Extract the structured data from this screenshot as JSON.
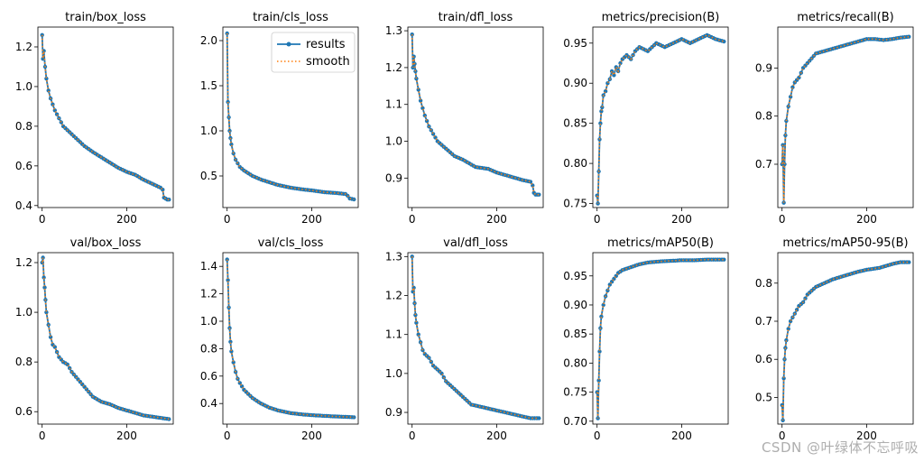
{
  "watermark": "CSDN @叶绿体不忘呼吸",
  "colors": {
    "results": "#1f77b4",
    "smooth": "#ff7f0e",
    "axes": "#000000"
  },
  "legend": {
    "results": "results",
    "smooth": "smooth",
    "placement": "upper-right of train/cls_loss"
  },
  "chart_data": [
    {
      "type": "line",
      "title": "train/box_loss",
      "xlim": [
        -10,
        310
      ],
      "ylim": [
        0.39,
        1.3
      ],
      "xticks": [
        0,
        200
      ],
      "xtick_labels": [
        "0",
        "200"
      ],
      "yticks": [
        0.4,
        0.6,
        0.8,
        1.0,
        1.2
      ],
      "ytick_labels": [
        "0.4",
        "0.6",
        "0.8",
        "1.0",
        "1.2"
      ],
      "x": [
        0,
        2,
        4,
        7,
        10,
        15,
        20,
        30,
        40,
        50,
        60,
        80,
        100,
        120,
        150,
        180,
        200,
        220,
        240,
        260,
        280,
        285,
        288,
        292,
        296,
        300
      ],
      "y": [
        1.26,
        1.14,
        1.18,
        1.1,
        1.04,
        0.98,
        0.94,
        0.88,
        0.84,
        0.8,
        0.78,
        0.74,
        0.7,
        0.67,
        0.63,
        0.59,
        0.57,
        0.555,
        0.53,
        0.51,
        0.49,
        0.48,
        0.44,
        0.435,
        0.43,
        0.43
      ],
      "legend": false
    },
    {
      "type": "line",
      "title": "train/cls_loss",
      "xlim": [
        -10,
        310
      ],
      "ylim": [
        0.15,
        2.15
      ],
      "xticks": [
        0,
        200
      ],
      "xtick_labels": [
        "0",
        "200"
      ],
      "yticks": [
        0.5,
        1.0,
        1.5,
        2.0
      ],
      "ytick_labels": [
        "0.5",
        "1.0",
        "1.5",
        "2.0"
      ],
      "x": [
        0,
        2,
        4,
        6,
        8,
        10,
        15,
        20,
        30,
        40,
        50,
        60,
        80,
        100,
        120,
        150,
        180,
        200,
        230,
        260,
        280,
        285,
        290,
        295,
        300
      ],
      "y": [
        2.08,
        1.32,
        1.15,
        1.0,
        0.92,
        0.85,
        0.75,
        0.68,
        0.6,
        0.56,
        0.53,
        0.5,
        0.46,
        0.43,
        0.4,
        0.37,
        0.35,
        0.34,
        0.32,
        0.31,
        0.3,
        0.28,
        0.25,
        0.245,
        0.24
      ],
      "legend": true
    },
    {
      "type": "line",
      "title": "train/dfl_loss",
      "xlim": [
        -10,
        310
      ],
      "ylim": [
        0.82,
        1.31
      ],
      "xticks": [
        0,
        200
      ],
      "xtick_labels": [
        "0",
        "200"
      ],
      "yticks": [
        0.9,
        1.0,
        1.1,
        1.2,
        1.3
      ],
      "ytick_labels": [
        "0.9",
        "1.0",
        "1.1",
        "1.2",
        "1.3"
      ],
      "x": [
        0,
        2,
        4,
        6,
        8,
        10,
        15,
        20,
        30,
        40,
        50,
        60,
        80,
        100,
        120,
        150,
        180,
        200,
        230,
        260,
        280,
        285,
        288,
        292,
        296,
        300
      ],
      "y": [
        1.29,
        1.2,
        1.23,
        1.21,
        1.19,
        1.17,
        1.14,
        1.11,
        1.07,
        1.04,
        1.02,
        1.0,
        0.98,
        0.96,
        0.95,
        0.93,
        0.925,
        0.915,
        0.905,
        0.895,
        0.89,
        0.88,
        0.86,
        0.855,
        0.855,
        0.855
      ],
      "legend": false
    },
    {
      "type": "line",
      "title": "metrics/precision(B)",
      "xlim": [
        -10,
        310
      ],
      "ylim": [
        0.745,
        0.97
      ],
      "xticks": [
        0,
        200
      ],
      "xtick_labels": [
        "0",
        "200"
      ],
      "yticks": [
        0.75,
        0.8,
        0.85,
        0.9,
        0.95
      ],
      "ytick_labels": [
        "0.75",
        "0.80",
        "0.85",
        "0.90",
        "0.95"
      ],
      "x": [
        0,
        2,
        4,
        6,
        8,
        10,
        12,
        15,
        20,
        25,
        30,
        35,
        40,
        45,
        50,
        55,
        60,
        70,
        80,
        90,
        100,
        120,
        140,
        160,
        180,
        200,
        220,
        240,
        260,
        280,
        300
      ],
      "y": [
        0.76,
        0.75,
        0.79,
        0.83,
        0.85,
        0.865,
        0.87,
        0.885,
        0.89,
        0.9,
        0.905,
        0.915,
        0.91,
        0.92,
        0.915,
        0.925,
        0.93,
        0.935,
        0.93,
        0.94,
        0.945,
        0.94,
        0.95,
        0.945,
        0.95,
        0.955,
        0.95,
        0.955,
        0.96,
        0.955,
        0.952
      ],
      "legend": false
    },
    {
      "type": "line",
      "title": "metrics/recall(B)",
      "xlim": [
        -10,
        310
      ],
      "ylim": [
        0.61,
        0.985
      ],
      "xticks": [
        0,
        200
      ],
      "xtick_labels": [
        "0",
        "200"
      ],
      "yticks": [
        0.7,
        0.8,
        0.9
      ],
      "ytick_labels": [
        "0.7",
        "0.8",
        "0.9"
      ],
      "x": [
        0,
        2,
        4,
        6,
        8,
        10,
        15,
        20,
        25,
        30,
        40,
        50,
        60,
        70,
        80,
        100,
        120,
        140,
        160,
        180,
        200,
        220,
        240,
        260,
        280,
        300
      ],
      "y": [
        0.7,
        0.74,
        0.62,
        0.7,
        0.76,
        0.79,
        0.82,
        0.84,
        0.86,
        0.87,
        0.88,
        0.9,
        0.91,
        0.92,
        0.93,
        0.935,
        0.94,
        0.945,
        0.95,
        0.955,
        0.96,
        0.96,
        0.958,
        0.96,
        0.963,
        0.965
      ],
      "legend": false
    },
    {
      "type": "line",
      "title": "val/box_loss",
      "xlim": [
        -10,
        310
      ],
      "ylim": [
        0.55,
        1.24
      ],
      "xticks": [
        0,
        200
      ],
      "xtick_labels": [
        "0",
        "200"
      ],
      "yticks": [
        0.6,
        0.8,
        1.0,
        1.2
      ],
      "ytick_labels": [
        "0.6",
        "0.8",
        "1.0",
        "1.2"
      ],
      "x": [
        0,
        2,
        4,
        6,
        8,
        10,
        15,
        20,
        25,
        30,
        35,
        40,
        50,
        60,
        70,
        80,
        100,
        120,
        140,
        160,
        180,
        200,
        220,
        240,
        260,
        280,
        300
      ],
      "y": [
        1.2,
        1.22,
        1.14,
        1.1,
        1.05,
        1.0,
        0.95,
        0.9,
        0.87,
        0.86,
        0.84,
        0.82,
        0.8,
        0.79,
        0.76,
        0.74,
        0.7,
        0.66,
        0.64,
        0.63,
        0.615,
        0.605,
        0.595,
        0.585,
        0.58,
        0.575,
        0.57
      ],
      "legend": false
    },
    {
      "type": "line",
      "title": "val/cls_loss",
      "xlim": [
        -10,
        310
      ],
      "ylim": [
        0.25,
        1.5
      ],
      "xticks": [
        0,
        200
      ],
      "xtick_labels": [
        "0",
        "200"
      ],
      "yticks": [
        0.4,
        0.6,
        0.8,
        1.0,
        1.2,
        1.4
      ],
      "ytick_labels": [
        "0.4",
        "0.6",
        "0.8",
        "1.0",
        "1.2",
        "1.4"
      ],
      "x": [
        0,
        2,
        4,
        6,
        8,
        10,
        15,
        20,
        25,
        30,
        40,
        50,
        60,
        80,
        100,
        120,
        150,
        180,
        200,
        230,
        260,
        280,
        300
      ],
      "y": [
        1.45,
        1.3,
        1.1,
        0.95,
        0.85,
        0.78,
        0.7,
        0.63,
        0.58,
        0.55,
        0.5,
        0.47,
        0.44,
        0.4,
        0.37,
        0.35,
        0.33,
        0.32,
        0.315,
        0.31,
        0.305,
        0.303,
        0.3
      ],
      "legend": false
    },
    {
      "type": "line",
      "title": "val/dfl_loss",
      "xlim": [
        -10,
        310
      ],
      "ylim": [
        0.87,
        1.31
      ],
      "xticks": [
        0,
        200
      ],
      "xtick_labels": [
        "0",
        "200"
      ],
      "yticks": [
        0.9,
        1.0,
        1.1,
        1.2,
        1.3
      ],
      "ytick_labels": [
        "0.9",
        "1.0",
        "1.1",
        "1.2",
        "1.3"
      ],
      "x": [
        0,
        2,
        4,
        6,
        8,
        10,
        15,
        20,
        25,
        30,
        40,
        50,
        60,
        70,
        80,
        100,
        120,
        140,
        160,
        180,
        200,
        220,
        240,
        260,
        280,
        300
      ],
      "y": [
        1.3,
        1.21,
        1.22,
        1.18,
        1.15,
        1.13,
        1.1,
        1.08,
        1.06,
        1.05,
        1.04,
        1.02,
        1.01,
        1.0,
        0.98,
        0.96,
        0.94,
        0.92,
        0.915,
        0.91,
        0.905,
        0.9,
        0.895,
        0.89,
        0.885,
        0.885
      ],
      "legend": false
    },
    {
      "type": "line",
      "title": "metrics/mAP50(B)",
      "xlim": [
        -10,
        310
      ],
      "ylim": [
        0.695,
        0.99
      ],
      "xticks": [
        0,
        200
      ],
      "xtick_labels": [
        "0",
        "200"
      ],
      "yticks": [
        0.7,
        0.75,
        0.8,
        0.85,
        0.9,
        0.95
      ],
      "ytick_labels": [
        "0.70",
        "0.75",
        "0.80",
        "0.85",
        "0.90",
        "0.95"
      ],
      "x": [
        0,
        2,
        4,
        6,
        8,
        10,
        15,
        20,
        25,
        30,
        40,
        50,
        60,
        80,
        100,
        120,
        150,
        180,
        200,
        230,
        260,
        280,
        300
      ],
      "y": [
        0.75,
        0.705,
        0.77,
        0.82,
        0.86,
        0.88,
        0.9,
        0.915,
        0.925,
        0.935,
        0.945,
        0.955,
        0.96,
        0.965,
        0.97,
        0.973,
        0.975,
        0.976,
        0.977,
        0.977,
        0.978,
        0.978,
        0.978
      ],
      "legend": false
    },
    {
      "type": "line",
      "title": "metrics/mAP50-95(B)",
      "xlim": [
        -10,
        310
      ],
      "ylim": [
        0.43,
        0.88
      ],
      "xticks": [
        0,
        200
      ],
      "xtick_labels": [
        "0",
        "200"
      ],
      "yticks": [
        0.5,
        0.6,
        0.7,
        0.8
      ],
      "ytick_labels": [
        "0.5",
        "0.6",
        "0.7",
        "0.8"
      ],
      "x": [
        0,
        2,
        4,
        6,
        8,
        10,
        15,
        20,
        25,
        30,
        40,
        50,
        60,
        80,
        100,
        120,
        150,
        180,
        200,
        230,
        260,
        280,
        300
      ],
      "y": [
        0.48,
        0.44,
        0.55,
        0.6,
        0.63,
        0.65,
        0.68,
        0.7,
        0.71,
        0.72,
        0.74,
        0.75,
        0.77,
        0.79,
        0.8,
        0.81,
        0.82,
        0.83,
        0.835,
        0.84,
        0.85,
        0.855,
        0.855
      ],
      "legend": false
    }
  ]
}
